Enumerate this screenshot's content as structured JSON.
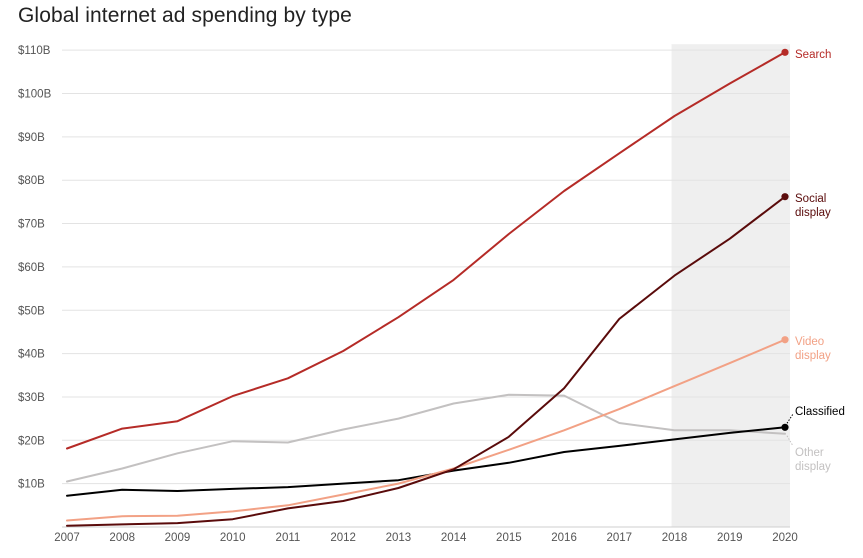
{
  "chart_data": {
    "type": "line",
    "title": "Global internet ad spending by type",
    "xlabel": "",
    "ylabel": "",
    "x": [
      "2007",
      "2008",
      "2009",
      "2010",
      "2011",
      "2012",
      "2013",
      "2014",
      "2015",
      "2016",
      "2017",
      "2018",
      "2019",
      "2020"
    ],
    "ylim": [
      0,
      110
    ],
    "yticks": [
      10,
      20,
      30,
      40,
      50,
      60,
      70,
      80,
      90,
      100,
      110
    ],
    "ytick_labels": [
      "$10B",
      "$20B",
      "$30B",
      "$40B",
      "$50B",
      "$60B",
      "$70B",
      "$80B",
      "$90B",
      "$100B",
      "$110B"
    ],
    "grid": true,
    "forecast_shading": [
      "2018",
      "2020"
    ],
    "series": [
      {
        "name": "Other display",
        "label_lines": [
          "Other",
          "display"
        ],
        "color": "#c3c1c1",
        "values": [
          10.5,
          13.5,
          17,
          19.8,
          19.5,
          22.5,
          25,
          28.5,
          30.5,
          30.3,
          24,
          22.3,
          22.3,
          21.5
        ],
        "end_marker": false
      },
      {
        "name": "Classified",
        "label_lines": [
          "Classified"
        ],
        "color": "#000000",
        "values": [
          7.2,
          8.6,
          8.3,
          8.8,
          9.2,
          10,
          10.8,
          13,
          14.8,
          17.3,
          18.7,
          20.2,
          21.7,
          23
        ],
        "end_marker": true
      },
      {
        "name": "Video display",
        "label_lines": [
          "Video",
          "display"
        ],
        "color": "#f2a185",
        "values": [
          1.5,
          2.5,
          2.6,
          3.6,
          5,
          7.5,
          10,
          13.5,
          17.8,
          22.3,
          27.2,
          32.5,
          37.8,
          43.2
        ],
        "end_marker": true
      },
      {
        "name": "Social display",
        "label_lines": [
          "Social",
          "display"
        ],
        "color": "#5a0b0b",
        "values": [
          0.3,
          0.6,
          0.9,
          1.8,
          4.3,
          6,
          9,
          13.3,
          20.8,
          32,
          48,
          58,
          66.5,
          76.2
        ],
        "end_marker": true
      },
      {
        "name": "Search",
        "label_lines": [
          "Search"
        ],
        "color": "#b52b27",
        "values": [
          18.1,
          22.7,
          24.4,
          30.2,
          34.3,
          40.6,
          48.4,
          57,
          67.6,
          77.5,
          86.2,
          94.8,
          102.3,
          109.5
        ],
        "end_marker": true
      }
    ]
  }
}
